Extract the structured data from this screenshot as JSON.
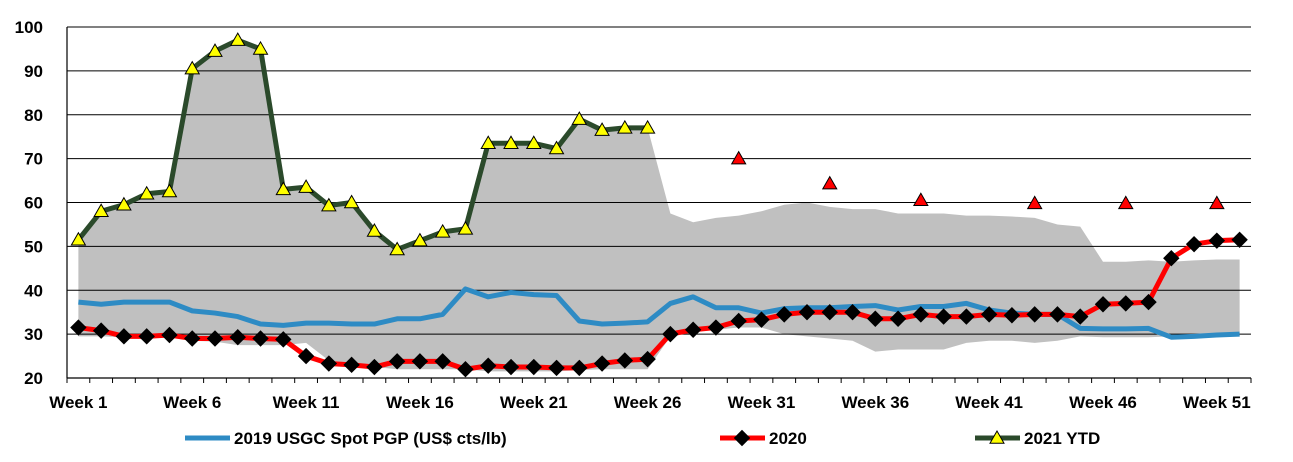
{
  "chart_data": {
    "type": "line",
    "title": "",
    "xlabel": "",
    "ylabel": "",
    "ylim": [
      20,
      100
    ],
    "yticks": [
      20,
      30,
      40,
      50,
      60,
      70,
      80,
      90,
      100
    ],
    "xrange": [
      1,
      52
    ],
    "xticks": [
      {
        "week": 1,
        "label": "Week 1"
      },
      {
        "week": 6,
        "label": "Week 6"
      },
      {
        "week": 11,
        "label": "Week 11"
      },
      {
        "week": 16,
        "label": "Week 16"
      },
      {
        "week": 21,
        "label": "Week 21"
      },
      {
        "week": 26,
        "label": "Week 26"
      },
      {
        "week": 31,
        "label": "Week 31"
      },
      {
        "week": 36,
        "label": "Week 36"
      },
      {
        "week": 41,
        "label": "Week 41"
      },
      {
        "week": 46,
        "label": "Week 46"
      },
      {
        "week": 51,
        "label": "Week 51"
      }
    ],
    "grid": "horizontal",
    "legend_position": "bottom",
    "range_band": {
      "color": "#c0c0c0",
      "x": [
        1,
        2,
        3,
        4,
        5,
        6,
        7,
        8,
        9,
        10,
        11,
        12,
        13,
        14,
        15,
        16,
        17,
        18,
        19,
        20,
        21,
        22,
        23,
        24,
        25,
        26,
        27,
        28,
        29,
        30,
        31,
        32,
        33,
        34,
        35,
        36,
        37,
        38,
        39,
        40,
        41,
        42,
        43,
        44,
        45,
        46,
        47,
        48,
        49,
        50,
        51,
        52
      ],
      "upper": [
        52,
        58,
        60,
        62,
        63,
        90.5,
        94.5,
        97,
        95,
        63,
        64,
        59.5,
        60,
        53.5,
        49.5,
        51.5,
        53.5,
        54.5,
        73.5,
        73.5,
        73.5,
        72.5,
        79,
        76.5,
        77,
        77,
        57.5,
        55.5,
        56.5,
        57,
        58,
        59.5,
        60,
        59,
        58.5,
        58.5,
        57.5,
        57.5,
        57.5,
        57,
        57,
        56.8,
        56.5,
        55,
        54.5,
        46.5,
        46.5,
        46.8,
        46.5,
        46.8,
        47,
        47
      ],
      "lower": [
        29.5,
        29.5,
        29.3,
        29.3,
        29.2,
        28.5,
        28.3,
        27.5,
        27.5,
        27.5,
        28,
        24,
        22.5,
        22.5,
        22,
        22,
        22,
        22,
        21.5,
        21.5,
        21.5,
        21.5,
        21.8,
        22,
        22,
        22,
        29.5,
        30.5,
        31,
        31.5,
        31.5,
        30,
        29.5,
        29,
        28.5,
        26,
        26.5,
        26.5,
        26.5,
        28,
        28.5,
        28.5,
        28,
        28.5,
        29.5,
        29.3,
        29.3,
        29.3,
        29.5,
        29.5,
        29.5,
        29.5
      ]
    },
    "series": [
      {
        "name": "2019 USGC Spot PGP (US$ cts/lb)",
        "color": "#2e8bc4",
        "marker": "none",
        "x": [
          1,
          2,
          3,
          4,
          5,
          6,
          7,
          8,
          9,
          10,
          11,
          12,
          13,
          14,
          15,
          16,
          17,
          18,
          19,
          20,
          21,
          22,
          23,
          24,
          25,
          26,
          27,
          28,
          29,
          30,
          31,
          32,
          33,
          34,
          35,
          36,
          37,
          38,
          39,
          40,
          41,
          42,
          43,
          44,
          45,
          46,
          47,
          48,
          49,
          50,
          51,
          52
        ],
        "values": [
          37.3,
          36.8,
          37.3,
          37.3,
          37.3,
          35.3,
          34.8,
          34,
          32.3,
          32,
          32.5,
          32.5,
          32.3,
          32.3,
          33.5,
          33.5,
          34.5,
          40.3,
          38.5,
          39.5,
          39,
          38.8,
          33,
          32.3,
          32.5,
          32.8,
          37,
          38.5,
          36,
          36,
          34.8,
          35.8,
          36,
          36,
          36.3,
          36.5,
          35.5,
          36.3,
          36.3,
          37,
          35.5,
          34.8,
          34.5,
          34.5,
          31.3,
          31.2,
          31.2,
          31.3,
          29.3,
          29.5,
          29.8,
          30
        ]
      },
      {
        "name": "2020",
        "color": "#ff0000",
        "marker": "diamond",
        "marker_color": "#000000",
        "x": [
          1,
          2,
          3,
          4,
          5,
          6,
          7,
          8,
          9,
          10,
          11,
          12,
          13,
          14,
          15,
          16,
          17,
          18,
          19,
          20,
          21,
          22,
          23,
          24,
          25,
          26,
          27,
          28,
          29,
          30,
          31,
          32,
          33,
          34,
          35,
          36,
          37,
          38,
          39,
          40,
          41,
          42,
          43,
          44,
          45,
          46,
          47,
          48,
          49,
          50,
          51,
          52
        ],
        "values": [
          31.5,
          30.8,
          29.5,
          29.5,
          29.8,
          29,
          29,
          29.3,
          29,
          28.8,
          25,
          23.3,
          23,
          22.5,
          23.8,
          23.8,
          23.8,
          22,
          22.8,
          22.5,
          22.5,
          22.3,
          22.3,
          23.3,
          24,
          24.3,
          30,
          31,
          31.5,
          33,
          33.3,
          34.5,
          35,
          35,
          35,
          33.5,
          33.5,
          34.5,
          34,
          34,
          34.5,
          34.3,
          34.5,
          34.5,
          34,
          36.8,
          37,
          37.3,
          47.3,
          50.5,
          51.3,
          51.5
        ]
      },
      {
        "name": "2021 YTD",
        "color": "#2b4a2b",
        "marker": "triangle",
        "marker_color": "#ffff00",
        "x": [
          1,
          2,
          3,
          4,
          5,
          6,
          7,
          8,
          9,
          10,
          11,
          12,
          13,
          14,
          15,
          16,
          17,
          18,
          19,
          20,
          21,
          22,
          23,
          24,
          25,
          26
        ],
        "values": [
          51.5,
          58,
          59.5,
          62,
          62.5,
          90.5,
          94.5,
          97,
          95,
          63,
          63.5,
          59.3,
          60,
          53.5,
          49.3,
          51.3,
          53.3,
          54,
          73.5,
          73.5,
          73.5,
          72.3,
          79,
          76.5,
          77,
          77
        ]
      }
    ],
    "forecast_markers": {
      "color": "#ff0000",
      "marker": "triangle",
      "points": [
        {
          "x": 30,
          "value": 70
        },
        {
          "x": 34,
          "value": 64.3
        },
        {
          "x": 38,
          "value": 60.5
        },
        {
          "x": 43,
          "value": 59.8
        },
        {
          "x": 47,
          "value": 59.8
        },
        {
          "x": 51,
          "value": 59.8
        }
      ]
    }
  }
}
